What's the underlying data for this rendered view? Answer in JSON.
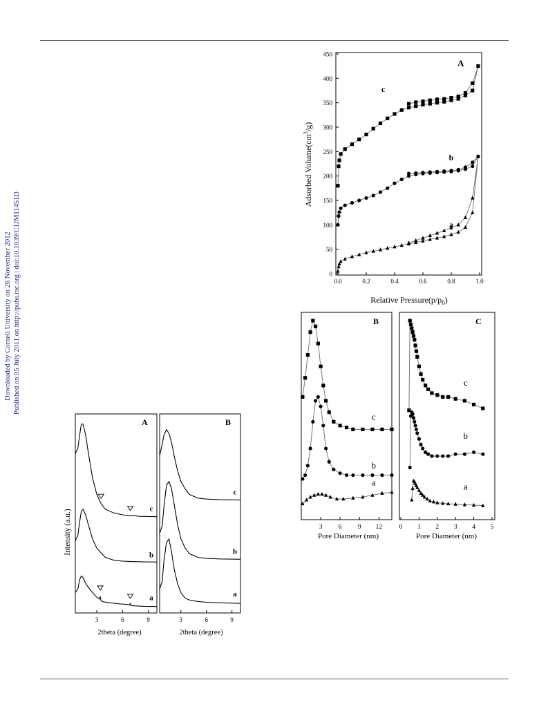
{
  "side_text": {
    "line1": "Downloaded by Cornell University on 26 November 2012",
    "line2": "Published on 05 July 2011 on http://pubs.rsc.org | doi:10.1039/C1JM11451D",
    "color": "#1f2a8a"
  },
  "figures": {
    "xrd": {
      "ylabel": "Intensity (a.u.)",
      "panelA": {
        "letter": "A",
        "xlabel": "2theta (degree)",
        "xticks": [
          "3",
          "6",
          "9"
        ]
      },
      "panelB": {
        "letter": "B",
        "xlabel": "2theta (degree)",
        "xticks": [
          "3",
          "6",
          "9"
        ]
      },
      "curve_labels": [
        "a",
        "b",
        "c"
      ]
    },
    "isotherm": {
      "letter": "A",
      "ylabel_main": "Adsorbed Volume(cm",
      "ylabel_sup": "3",
      "ylabel_tail": "/g)",
      "xlabel_main": "Relative Pressure(p/p",
      "xlabel_sub": "0",
      "xlabel_tail": ")",
      "xticks": [
        "0.0",
        "0.2",
        "0.4",
        "0.6",
        "0.8",
        "1.0"
      ],
      "yticks": [
        "0",
        "50",
        "100",
        "150",
        "200",
        "250",
        "300",
        "350",
        "400",
        "450"
      ],
      "curve_labels": [
        "a",
        "b",
        "c"
      ]
    },
    "pore_B": {
      "letter": "B",
      "xlabel": "Pore Diameter (nm)",
      "xticks": [
        "3",
        "6",
        "9",
        "12"
      ],
      "curve_labels": [
        "a",
        "b",
        "c"
      ]
    },
    "pore_C": {
      "letter": "C",
      "xlabel": "Pore Diameter (nm)",
      "xticks": [
        "0",
        "1",
        "2",
        "3",
        "4",
        "5"
      ],
      "curve_labels": [
        "a",
        "b",
        "c"
      ]
    }
  },
  "chart_data": [
    {
      "type": "line",
      "panel": "isotherm",
      "xlabel": "Relative Pressure(p/p0)",
      "ylabel": "Adsorbed Volume(cm3/g)",
      "xlim": [
        0,
        1.0
      ],
      "ylim": [
        0,
        450
      ],
      "series": [
        {
          "name": "a",
          "marker": "triangle",
          "x": [
            0.0,
            0.005,
            0.01,
            0.02,
            0.05,
            0.1,
            0.15,
            0.2,
            0.25,
            0.3,
            0.35,
            0.4,
            0.45,
            0.5,
            0.55,
            0.6,
            0.65,
            0.7,
            0.75,
            0.8,
            0.85,
            0.9,
            0.95,
            0.99,
            0.95,
            0.9,
            0.85,
            0.8,
            0.75,
            0.7,
            0.65,
            0.6,
            0.55,
            0.5
          ],
          "y": [
            5,
            14,
            20,
            25,
            30,
            35,
            39,
            43,
            46,
            49,
            52,
            55,
            58,
            61,
            64,
            67,
            70,
            73,
            76,
            80,
            85,
            95,
            125,
            240,
            155,
            115,
            100,
            94,
            88,
            83,
            78,
            73,
            68,
            63
          ]
        },
        {
          "name": "b",
          "marker": "circle",
          "x": [
            0.0,
            0.005,
            0.01,
            0.02,
            0.05,
            0.1,
            0.15,
            0.2,
            0.25,
            0.3,
            0.35,
            0.4,
            0.45,
            0.5,
            0.55,
            0.6,
            0.65,
            0.7,
            0.75,
            0.8,
            0.85,
            0.9,
            0.95,
            0.99,
            0.95,
            0.9,
            0.85,
            0.8,
            0.75,
            0.7,
            0.65,
            0.6,
            0.55,
            0.5
          ],
          "y": [
            100,
            118,
            126,
            134,
            140,
            145,
            150,
            155,
            160,
            167,
            175,
            185,
            193,
            200,
            203,
            205,
            206,
            207,
            208,
            209,
            211,
            214,
            220,
            240,
            228,
            218,
            213,
            211,
            210,
            209,
            208,
            207,
            206,
            205
          ]
        },
        {
          "name": "c",
          "marker": "square",
          "x": [
            0.0,
            0.005,
            0.01,
            0.02,
            0.05,
            0.1,
            0.15,
            0.2,
            0.25,
            0.3,
            0.35,
            0.4,
            0.45,
            0.5,
            0.55,
            0.6,
            0.65,
            0.7,
            0.75,
            0.8,
            0.85,
            0.9,
            0.95,
            0.99,
            0.95,
            0.9,
            0.85,
            0.8,
            0.75,
            0.7,
            0.65,
            0.6,
            0.55,
            0.5
          ],
          "y": [
            180,
            220,
            232,
            245,
            255,
            265,
            275,
            285,
            297,
            308,
            318,
            327,
            335,
            340,
            343,
            346,
            348,
            350,
            352,
            355,
            358,
            365,
            375,
            425,
            390,
            370,
            363,
            360,
            358,
            357,
            355,
            353,
            351,
            348
          ]
        }
      ]
    },
    {
      "type": "line",
      "panel": "pore_B",
      "xlabel": "Pore Diameter (nm)",
      "xlim": [
        0,
        14
      ],
      "ylim": [
        0,
        1
      ],
      "series": [
        {
          "name": "a",
          "marker": "triangle",
          "x": [
            0.2,
            0.8,
            1.4,
            2.0,
            2.6,
            3.2,
            3.8,
            4.5,
            5.5,
            6.5,
            8,
            9.5,
            11,
            12.5,
            14
          ],
          "y": [
            0.04,
            0.06,
            0.075,
            0.085,
            0.09,
            0.09,
            0.085,
            0.075,
            0.065,
            0.065,
            0.07,
            0.075,
            0.085,
            0.095,
            0.1
          ]
        },
        {
          "name": "b",
          "marker": "circle",
          "x": [
            0.2,
            0.6,
            1.0,
            1.4,
            1.8,
            2.2,
            2.6,
            3.0,
            3.4,
            3.8,
            4.3,
            5,
            6,
            7,
            8,
            9.5,
            11,
            12.5,
            14
          ],
          "y": [
            0.17,
            0.19,
            0.24,
            0.33,
            0.47,
            0.58,
            0.6,
            0.55,
            0.45,
            0.33,
            0.26,
            0.22,
            0.2,
            0.19,
            0.19,
            0.19,
            0.19,
            0.19,
            0.19
          ]
        },
        {
          "name": "c",
          "marker": "square",
          "x": [
            0.2,
            0.6,
            1.0,
            1.4,
            1.8,
            2.2,
            2.6,
            3.0,
            3.4,
            3.8,
            4.3,
            5,
            6,
            7,
            8,
            9.5,
            11,
            12.5,
            14
          ],
          "y": [
            0.6,
            0.7,
            0.82,
            0.94,
            1.0,
            0.97,
            0.88,
            0.76,
            0.66,
            0.58,
            0.52,
            0.47,
            0.45,
            0.44,
            0.43,
            0.43,
            0.43,
            0.43,
            0.43
          ]
        }
      ]
    },
    {
      "type": "line",
      "panel": "pore_C",
      "xlabel": "Pore Diameter (nm)",
      "xlim": [
        0,
        5
      ],
      "ylim": [
        0,
        1
      ],
      "series": [
        {
          "name": "a",
          "marker": "triangle",
          "x": [
            0.6,
            0.65,
            0.7,
            0.75,
            0.8,
            0.85,
            0.9,
            1.0,
            1.1,
            1.2,
            1.3,
            1.45,
            1.6,
            1.8,
            2.0,
            2.3,
            2.6,
            3.0,
            3.5,
            4.0,
            4.5
          ],
          "y": [
            0.06,
            0.12,
            0.16,
            0.155,
            0.145,
            0.135,
            0.125,
            0.11,
            0.095,
            0.085,
            0.075,
            0.065,
            0.055,
            0.05,
            0.045,
            0.042,
            0.04,
            0.038,
            0.035,
            0.033,
            0.03
          ]
        },
        {
          "name": "b",
          "marker": "circle",
          "x": [
            0.5,
            0.55,
            0.6,
            0.65,
            0.7,
            0.75,
            0.8,
            0.85,
            0.9,
            1.0,
            1.1,
            1.2,
            1.35,
            1.5,
            1.7,
            2.0,
            2.3,
            2.6,
            3.0,
            3.5,
            4.0,
            4.5
          ],
          "y": [
            0.23,
            0.5,
            0.52,
            0.51,
            0.49,
            0.47,
            0.45,
            0.43,
            0.41,
            0.38,
            0.35,
            0.33,
            0.31,
            0.3,
            0.29,
            0.29,
            0.29,
            0.29,
            0.3,
            0.3,
            0.31,
            0.3
          ]
        },
        {
          "name": "c",
          "marker": "square",
          "x": [
            0.45,
            0.5,
            0.55,
            0.6,
            0.65,
            0.7,
            0.75,
            0.8,
            0.85,
            0.9,
            1.0,
            1.1,
            1.2,
            1.35,
            1.5,
            1.7,
            2.0,
            2.3,
            2.6,
            3.0,
            3.5,
            4.0,
            4.5
          ],
          "y": [
            0.53,
            1.0,
            0.98,
            0.96,
            0.94,
            0.92,
            0.9,
            0.87,
            0.84,
            0.81,
            0.76,
            0.72,
            0.69,
            0.66,
            0.64,
            0.62,
            0.61,
            0.6,
            0.6,
            0.59,
            0.58,
            0.56,
            0.54
          ]
        }
      ]
    },
    {
      "type": "line",
      "panel": "xrd_A",
      "xlabel": "2theta (degree)",
      "xlim": [
        0.5,
        10
      ],
      "ylim": [
        0,
        1
      ],
      "series": [
        {
          "name": "a",
          "x": [
            0.5,
            0.8,
            1.0,
            1.2,
            1.4,
            1.7,
            2.0,
            2.5,
            3.0,
            3.3,
            3.4,
            3.5,
            3.8,
            4.5,
            5.5,
            6.5,
            6.8,
            6.9,
            7.0,
            7.5,
            8.5,
            10
          ],
          "y": [
            0.08,
            0.1,
            0.15,
            0.17,
            0.16,
            0.13,
            0.11,
            0.08,
            0.055,
            0.045,
            0.06,
            0.035,
            0.03,
            0.025,
            0.02,
            0.016,
            0.013,
            0.022,
            0.01,
            0.008,
            0.006,
            0.005
          ]
        },
        {
          "name": "b",
          "x": [
            0.5,
            0.8,
            1.0,
            1.2,
            1.4,
            1.7,
            2.0,
            2.5,
            3.0,
            4.0,
            5.0,
            6.0,
            7.0,
            8.5,
            10
          ],
          "y": [
            0.36,
            0.39,
            0.46,
            0.52,
            0.53,
            0.5,
            0.45,
            0.37,
            0.32,
            0.27,
            0.255,
            0.25,
            0.248,
            0.246,
            0.245
          ]
        },
        {
          "name": "c",
          "x": [
            0.5,
            0.8,
            1.0,
            1.2,
            1.4,
            1.7,
            2.0,
            2.5,
            3.0,
            3.5,
            4.0,
            5.0,
            6.0,
            6.8,
            7.0,
            8.0,
            10
          ],
          "y": [
            0.83,
            0.86,
            0.93,
            0.99,
            0.99,
            0.93,
            0.84,
            0.7,
            0.61,
            0.56,
            0.53,
            0.51,
            0.5,
            0.495,
            0.497,
            0.492,
            0.49
          ]
        }
      ]
    },
    {
      "type": "line",
      "panel": "xrd_B",
      "xlabel": "2theta (degree)",
      "xlim": [
        0.5,
        10
      ],
      "ylim": [
        0,
        1
      ],
      "series": [
        {
          "name": "a",
          "x": [
            0.5,
            0.8,
            1.0,
            1.3,
            1.6,
            1.9,
            2.2,
            2.6,
            3.0,
            3.5,
            4.0,
            5.0,
            6.0,
            7.5,
            10
          ],
          "y": [
            0.1,
            0.14,
            0.25,
            0.35,
            0.37,
            0.3,
            0.21,
            0.13,
            0.08,
            0.05,
            0.04,
            0.032,
            0.028,
            0.025,
            0.022
          ]
        },
        {
          "name": "b",
          "x": [
            0.5,
            0.8,
            1.0,
            1.3,
            1.6,
            1.9,
            2.2,
            2.6,
            3.0,
            3.5,
            4.0,
            5.0,
            6.0,
            7.5,
            10
          ],
          "y": [
            0.4,
            0.44,
            0.54,
            0.66,
            0.68,
            0.64,
            0.56,
            0.45,
            0.37,
            0.32,
            0.29,
            0.27,
            0.265,
            0.262,
            0.26
          ]
        },
        {
          "name": "c",
          "x": [
            0.5,
            0.8,
            1.0,
            1.3,
            1.6,
            1.9,
            2.2,
            2.6,
            3.0,
            3.5,
            4.0,
            5.0,
            6.0,
            7.5,
            10
          ],
          "y": [
            0.82,
            0.88,
            0.93,
            0.96,
            0.94,
            0.89,
            0.82,
            0.74,
            0.68,
            0.64,
            0.61,
            0.59,
            0.585,
            0.582,
            0.58
          ]
        }
      ]
    }
  ]
}
